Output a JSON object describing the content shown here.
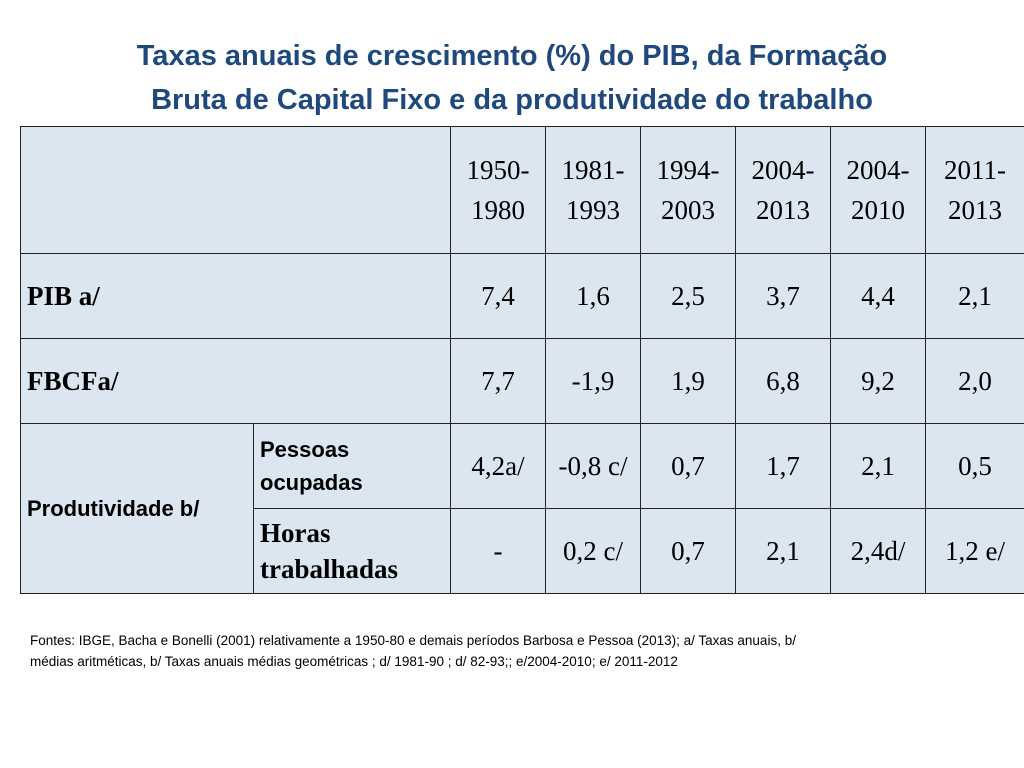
{
  "title": {
    "line1": "Taxas anuais de crescimento (%) do PIB, da Formação",
    "line2": "Bruta de Capital Fixo e da produtividade do trabalho"
  },
  "table": {
    "periods": [
      {
        "top": "1950-",
        "bottom": "1980"
      },
      {
        "top": "1981-",
        "bottom": "1993"
      },
      {
        "top": "1994-",
        "bottom": "2003"
      },
      {
        "top": "2004-",
        "bottom": "2013"
      },
      {
        "top": "2004-",
        "bottom": "2010"
      },
      {
        "top": "2011-",
        "bottom": "2013"
      }
    ],
    "rows": [
      {
        "label": "PIB a/",
        "values": [
          "7,4",
          "1,6",
          "2,5",
          "3,7",
          "4,4",
          "2,1"
        ]
      },
      {
        "label": "FBCFa/",
        "values": [
          "7,7",
          "-1,9",
          "1,9",
          "6,8",
          "9,2",
          "2,0"
        ]
      }
    ],
    "productivity": {
      "label": "Produtividade b/",
      "sub": [
        {
          "label_line1": "Pessoas",
          "label_line2": "ocupadas",
          "values": [
            "4,2a/",
            "-0,8 c/",
            "0,7",
            "1,7",
            "2,1",
            "0,5"
          ]
        },
        {
          "label_line1": "Horas",
          "label_line2": "trabalhadas",
          "values": [
            "-",
            "0,2 c/",
            "0,7",
            "2,1",
            "2,4d/",
            "1,2 e/"
          ]
        }
      ]
    }
  },
  "footnote": {
    "line1": "Fontes: IBGE, Bacha e Bonelli (2001) relativamente a 1950-80 e demais períodos Barbosa e Pessoa (2013); a/ Taxas anuais, b/",
    "line2": "médias aritméticas,  b/ Taxas anuais médias geométricas  ; d/ 1981-90 ; d/ 82-93;; e/2004-2010; e/ 2011-2012"
  },
  "colors": {
    "title": "#1F497D",
    "cell_background": "#DCE6F1",
    "border": "#222222"
  }
}
